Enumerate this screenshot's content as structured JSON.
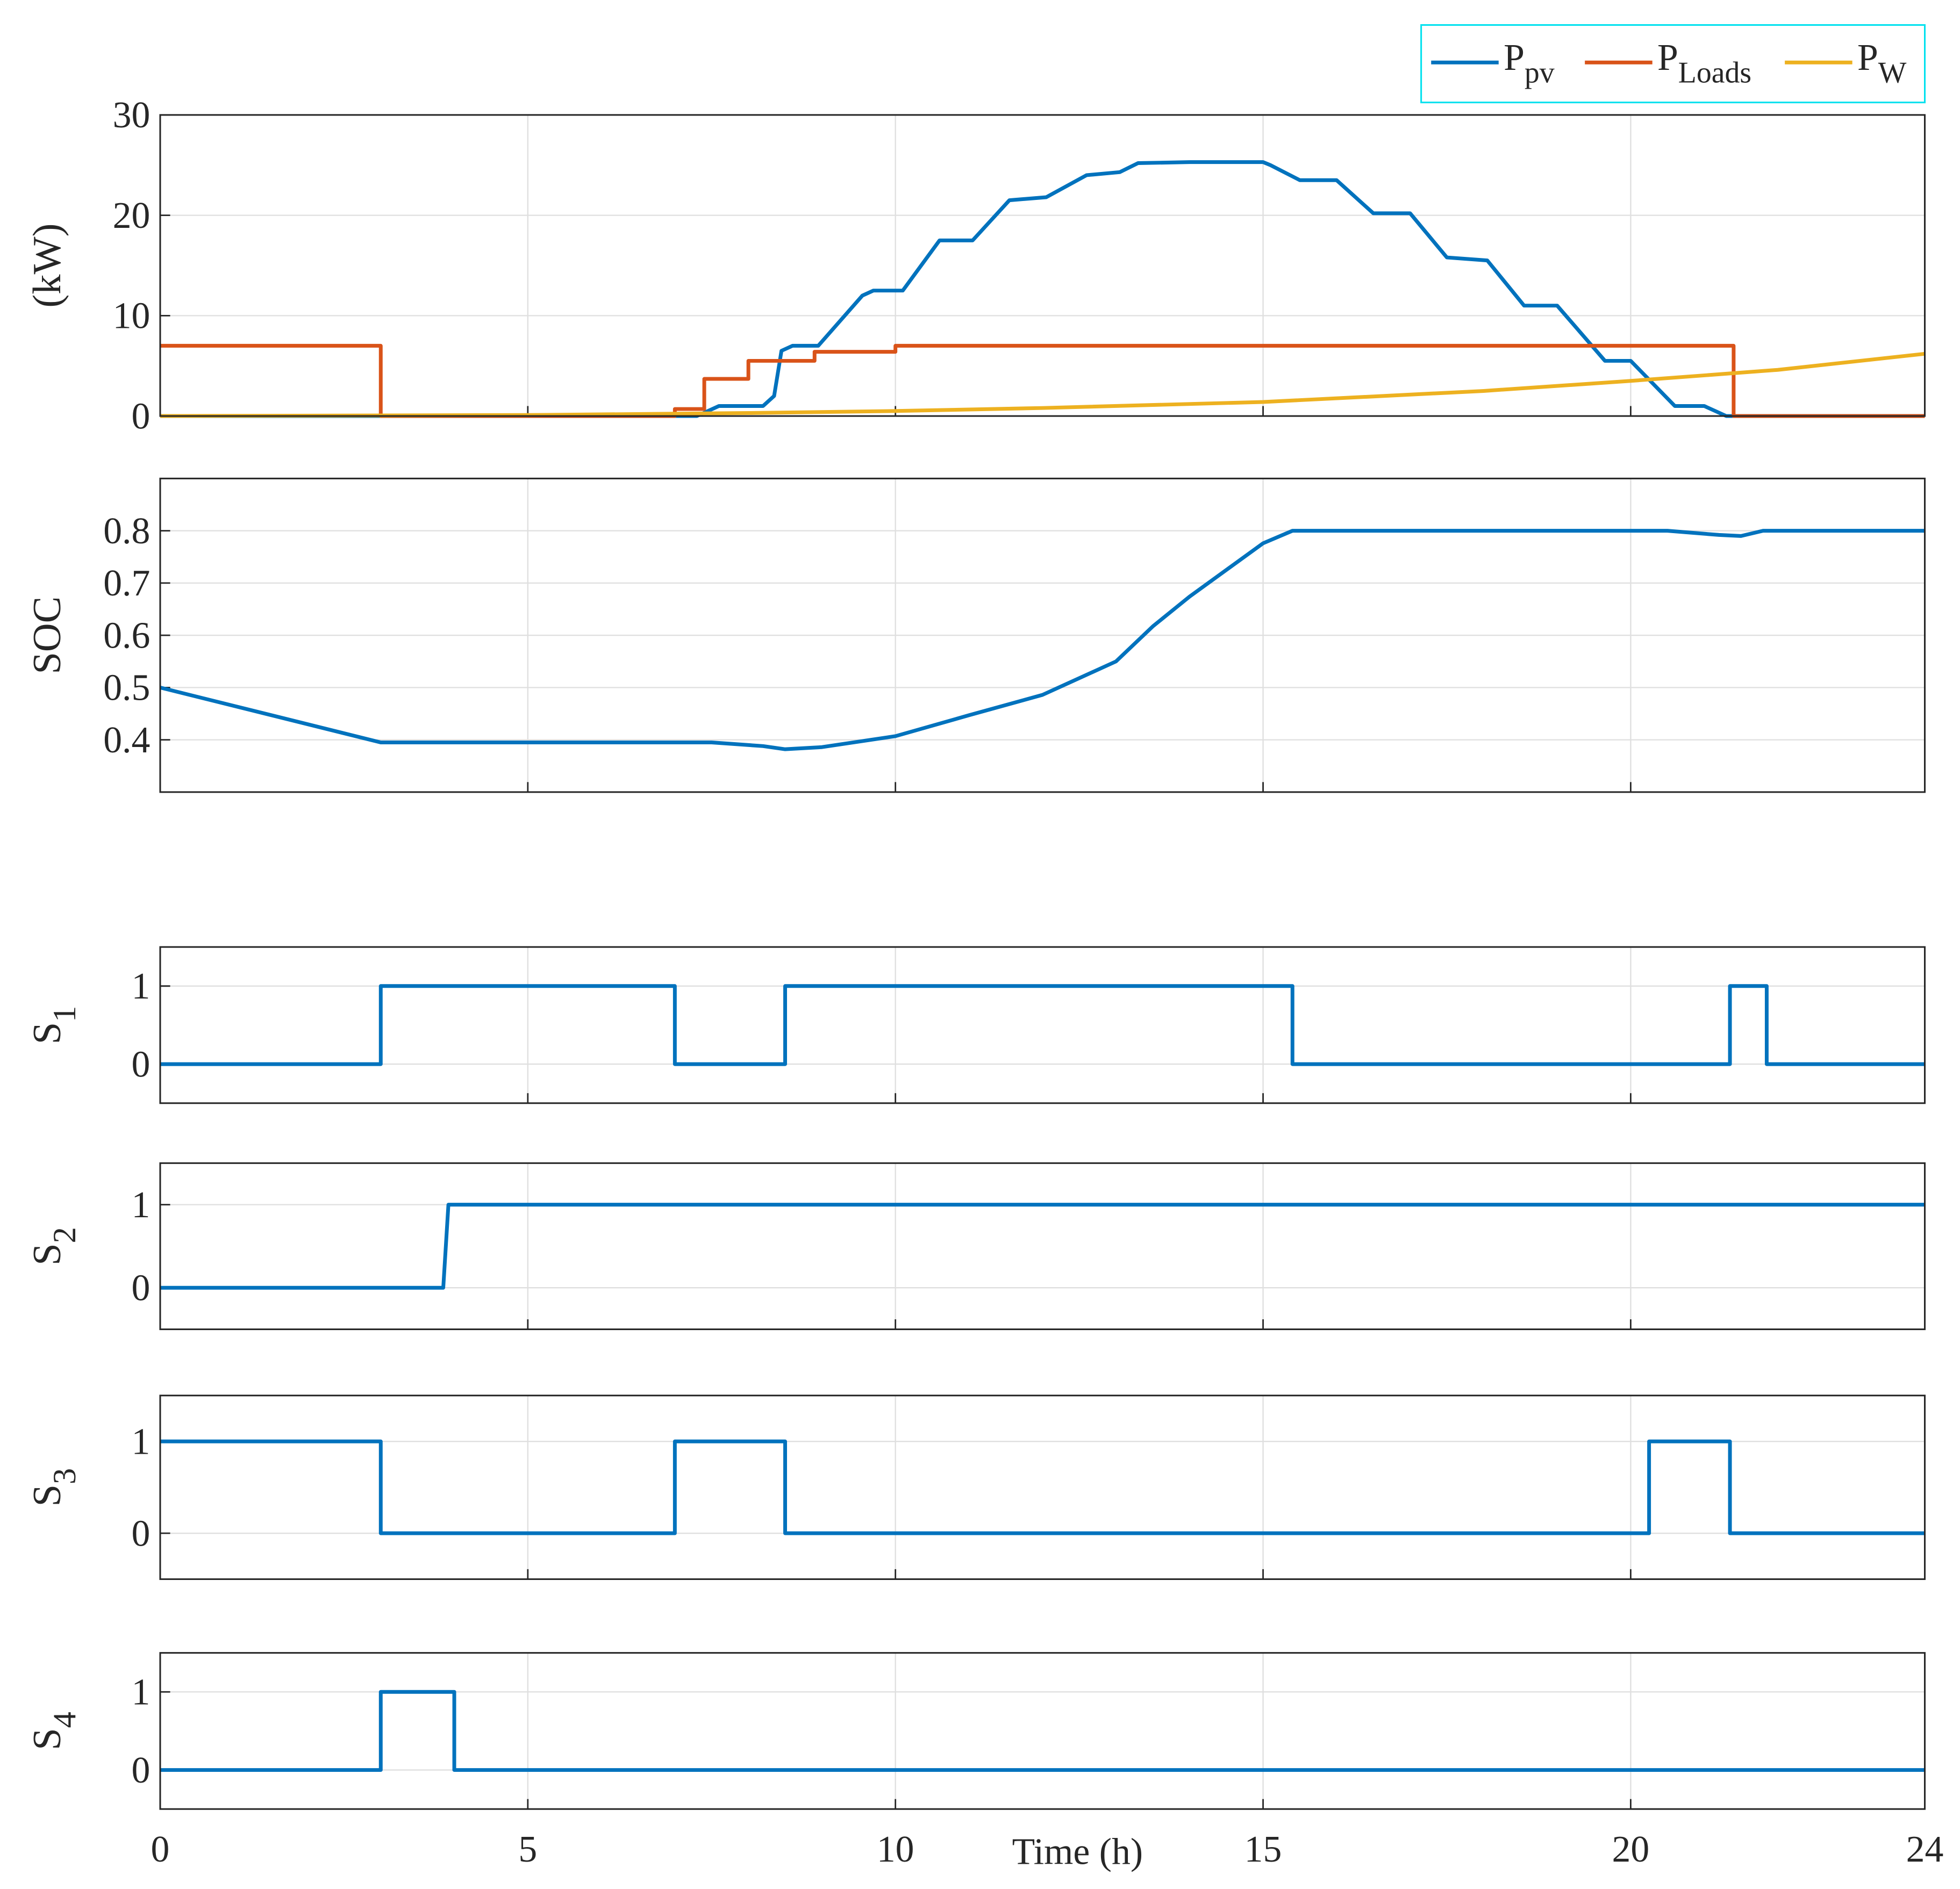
{
  "chart_data": [
    {
      "type": "line",
      "ylabel": "(kW)",
      "xlim": [
        0,
        24
      ],
      "xticks": [
        0,
        5,
        10,
        15,
        20,
        24
      ],
      "xtick_labels_visible": false,
      "ylim": [
        0,
        30
      ],
      "yticks": [
        0,
        10,
        20,
        30
      ],
      "grid": true,
      "legend": "outside-top-right",
      "series": [
        {
          "name": "P",
          "name_sub": "pv",
          "color": "#0072bd",
          "x": [
            0,
            7.3,
            7.6,
            8.2,
            8.35,
            8.45,
            8.6,
            8.95,
            9.55,
            9.7,
            10.1,
            10.6,
            11.05,
            11.55,
            12.05,
            12.6,
            13.05,
            13.3,
            14,
            15,
            15.1,
            15.5,
            16,
            16.5,
            17,
            17.5,
            18.05,
            18.55,
            19,
            19.65,
            20,
            20.6,
            21,
            21.3,
            24
          ],
          "values": [
            0,
            0,
            1,
            1,
            2,
            6.5,
            7,
            7,
            12,
            12.5,
            12.5,
            17.5,
            17.5,
            21.5,
            21.8,
            24,
            24.3,
            25.2,
            25.3,
            25.3,
            25,
            23.5,
            23.5,
            20.2,
            20.2,
            15.8,
            15.5,
            11,
            11,
            5.5,
            5.5,
            1,
            1,
            0,
            0
          ]
        },
        {
          "name": "P",
          "name_sub": "Loads",
          "color": "#d95319",
          "x": [
            0,
            3,
            3,
            7,
            7,
            7.4,
            7.4,
            8,
            8,
            8.9,
            8.9,
            10,
            10,
            21.4,
            21.4,
            24
          ],
          "values": [
            7,
            7,
            0,
            0,
            0.7,
            0.7,
            3.7,
            3.7,
            5.5,
            5.5,
            6.4,
            6.4,
            7,
            7,
            0,
            0
          ]
        },
        {
          "name": "P",
          "name_sub": "W",
          "color": "#edb120",
          "x": [
            0,
            5,
            8,
            10,
            12,
            15,
            18,
            20,
            22,
            24
          ],
          "values": [
            0,
            0.1,
            0.3,
            0.5,
            0.8,
            1.4,
            2.5,
            3.5,
            4.6,
            6.2
          ]
        }
      ]
    },
    {
      "type": "line",
      "ylabel": "SOC",
      "xlim": [
        0,
        24
      ],
      "xticks": [
        0,
        5,
        10,
        15,
        20,
        24
      ],
      "xtick_labels_visible": false,
      "ylim": [
        0.3,
        0.9
      ],
      "yticks": [
        0.4,
        0.5,
        0.6,
        0.7,
        0.8
      ],
      "grid": true,
      "color": "#0072bd",
      "x": [
        0,
        3,
        7.5,
        8.2,
        8.5,
        9,
        10,
        11,
        12,
        13,
        13.5,
        14,
        15,
        15.4,
        20.5,
        21.2,
        21.5,
        21.8,
        24
      ],
      "values": [
        0.5,
        0.395,
        0.395,
        0.388,
        0.382,
        0.386,
        0.407,
        0.447,
        0.486,
        0.55,
        0.617,
        0.674,
        0.776,
        0.8,
        0.8,
        0.792,
        0.79,
        0.8,
        0.8
      ]
    },
    {
      "type": "line",
      "ylabel": "S",
      "ylabel_sub": "1",
      "xlim": [
        0,
        24
      ],
      "xticks": [
        0,
        5,
        10,
        15,
        20,
        24
      ],
      "xtick_labels_visible": false,
      "ylim": [
        -0.5,
        1.5
      ],
      "yticks": [
        0,
        1
      ],
      "grid": true,
      "color": "#0072bd",
      "x": [
        0,
        3,
        3,
        7,
        7,
        8.5,
        8.5,
        15.4,
        15.4,
        21.35,
        21.35,
        21.85,
        21.85,
        24
      ],
      "values": [
        0,
        0,
        1,
        1,
        0,
        0,
        1,
        1,
        0,
        0,
        1,
        1,
        0,
        0
      ]
    },
    {
      "type": "line",
      "ylabel": "S",
      "ylabel_sub": "2",
      "xlim": [
        0,
        24
      ],
      "xticks": [
        0,
        5,
        10,
        15,
        20,
        24
      ],
      "xtick_labels_visible": false,
      "ylim": [
        -0.5,
        1.5
      ],
      "yticks": [
        0,
        1
      ],
      "grid": true,
      "color": "#0072bd",
      "x": [
        0,
        3.85,
        3.92,
        24
      ],
      "values": [
        0,
        0,
        1,
        1
      ]
    },
    {
      "type": "line",
      "ylabel": "S",
      "ylabel_sub": "3",
      "xlim": [
        0,
        24
      ],
      "xticks": [
        0,
        5,
        10,
        15,
        20,
        24
      ],
      "xtick_labels_visible": false,
      "ylim": [
        -0.5,
        1.5
      ],
      "yticks": [
        0,
        1
      ],
      "grid": true,
      "color": "#0072bd",
      "x": [
        0,
        3,
        3,
        7,
        7,
        8.5,
        8.5,
        20.25,
        20.25,
        21.35,
        21.35,
        24
      ],
      "values": [
        1,
        1,
        0,
        0,
        1,
        1,
        0,
        0,
        1,
        1,
        0,
        0
      ]
    },
    {
      "type": "line",
      "ylabel": "S",
      "ylabel_sub": "4",
      "xlabel": "Time (h)",
      "xlim": [
        0,
        24
      ],
      "xticks": [
        0,
        5,
        10,
        15,
        20,
        24
      ],
      "xtick_labels_visible": true,
      "ylim": [
        -0.5,
        1.5
      ],
      "yticks": [
        0,
        1
      ],
      "grid": true,
      "color": "#0072bd",
      "x": [
        0,
        3,
        3,
        4,
        4,
        24
      ],
      "values": [
        0,
        0,
        1,
        1,
        0,
        0
      ]
    }
  ]
}
